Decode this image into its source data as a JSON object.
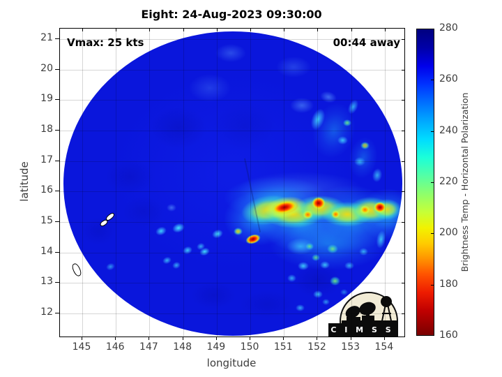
{
  "figure": {
    "title": "Eight: 24-Aug-2023 09:30:00",
    "overlays": {
      "vmax_label": "Vmax: 25 kts",
      "time_label": "00:44 away"
    }
  },
  "axes": {
    "xlabel": "longitude",
    "ylabel": "latitude",
    "x_ticks": [
      145,
      146,
      147,
      148,
      149,
      150,
      151,
      152,
      153,
      154
    ],
    "y_ticks": [
      21,
      20,
      19,
      18,
      17,
      16,
      15,
      14,
      13,
      12
    ],
    "xlim": [
      144.336,
      154.583
    ],
    "ylim": [
      11.247,
      21.344
    ]
  },
  "colorbar": {
    "label": "Brightness Temp - Horizontal Polarization",
    "vmin": 160,
    "vmax": 280,
    "ticks": [
      280,
      260,
      240,
      220,
      200,
      180,
      160
    ],
    "gradient": [
      [
        0,
        "#00007f"
      ],
      [
        0.06,
        "#0000a8"
      ],
      [
        0.12,
        "#0000ea"
      ],
      [
        0.18,
        "#0033ff"
      ],
      [
        0.24,
        "#0070ff"
      ],
      [
        0.3,
        "#00a8ff"
      ],
      [
        0.36,
        "#00dcff"
      ],
      [
        0.42,
        "#1cffd8"
      ],
      [
        0.48,
        "#55ffa4"
      ],
      [
        0.54,
        "#90ff6a"
      ],
      [
        0.6,
        "#c8ff35"
      ],
      [
        0.65,
        "#f2f200"
      ],
      [
        0.7,
        "#ffcc00"
      ],
      [
        0.75,
        "#ff9400"
      ],
      [
        0.8,
        "#ff5400"
      ],
      [
        0.86,
        "#ee1c00"
      ],
      [
        0.92,
        "#c00000"
      ],
      [
        1,
        "#7a0000"
      ]
    ]
  },
  "logo": {
    "name": "CIMSS",
    "banner_text": "C I M S S"
  },
  "chart_data": {
    "type": "heatmap",
    "title": "Eight: 24-Aug-2023 09:30:00",
    "xlabel": "longitude",
    "ylabel": "latitude",
    "value_label": "Brightness Temp - Horizontal Polarization",
    "value_range": [
      160,
      280
    ],
    "description": "Microwave brightness temperature swath (circular field of view) for tropical system Eight. Mostly warm blue background (~260-270) with a convective band of cold cloud tops (reds ~165-185) near 15-15.6N between 150E and 154.3E, scattered small cold cells southwest and southeast of the band, and lighter cyan streaks near the northeast swath edge.",
    "swath": {
      "center_lon": 149.48,
      "center_lat": 16.26,
      "radius_lon": 5.04,
      "radius_lat": 4.99,
      "background_temp": 265
    },
    "seam": {
      "lon1": 149.81,
      "lat1": 17.09,
      "lon2": 150.27,
      "lat2": 14.66
    },
    "islands": [
      {
        "name": "island-outline-north",
        "parts": [
          {
            "lon": 145.81,
            "lat": 15.19,
            "w": 12,
            "h": 5,
            "rot": -40
          },
          {
            "lon": 145.62,
            "lat": 15.0,
            "w": 10,
            "h": 5,
            "rot": -35
          }
        ]
      },
      {
        "name": "island-outline-south",
        "parts": [
          {
            "lon": 144.81,
            "lat": 13.45,
            "w": 8,
            "h": 17,
            "rot": -25
          }
        ]
      }
    ],
    "kind_legend": {
      "core": "deep convection ~165-180",
      "hot": "~185-195",
      "warm": "~200-215",
      "green": "~218-228",
      "cyan": "~230-242",
      "teal": "lightened patch ~245-252",
      "pale": "slightly warm blue ~252-258",
      "dark": "darker blue ~268-275"
    },
    "feature_fields": [
      "lon",
      "lat",
      "w_px",
      "h_px",
      "rot_deg",
      "kind",
      "opacity"
    ],
    "features": [
      [
        147.86,
        18.09,
        80,
        60,
        0,
        "dark",
        0.4
      ],
      [
        146.41,
        16.49,
        70,
        50,
        0,
        "dark",
        0.35
      ],
      [
        146.82,
        15.35,
        60,
        44,
        0,
        "dark",
        0.3
      ],
      [
        149.83,
        18.14,
        90,
        70,
        0,
        "dark",
        0.25
      ],
      [
        148.9,
        12.6,
        64,
        40,
        0,
        "dark",
        0.35
      ],
      [
        145.48,
        14.7,
        50,
        40,
        0,
        "dark",
        0.3
      ],
      [
        152.01,
        13.1,
        70,
        50,
        0,
        "dark",
        0.45
      ],
      [
        150.5,
        12.3,
        80,
        40,
        0,
        "dark",
        0.3
      ],
      [
        149.42,
        20.54,
        44,
        26,
        0,
        "pale",
        0.5
      ],
      [
        151.28,
        20.08,
        50,
        30,
        0,
        "pale",
        0.4
      ],
      [
        148.79,
        19.4,
        60,
        40,
        0,
        "pale",
        0.35
      ],
      [
        147.65,
        15.46,
        14,
        11,
        0,
        "pale",
        0.8
      ],
      [
        152.32,
        19.1,
        24,
        16,
        15,
        "pale",
        0.8
      ],
      [
        151.53,
        18.83,
        34,
        22,
        0,
        "pale",
        0.7
      ],
      [
        151.49,
        16.08,
        180,
        50,
        0,
        "pale",
        0.45
      ],
      [
        152.49,
        18.0,
        60,
        80,
        15,
        "teal",
        0.45
      ],
      [
        153.36,
        17.11,
        40,
        60,
        10,
        "teal",
        0.4
      ],
      [
        150.25,
        15.12,
        100,
        78,
        0,
        "teal",
        0.85
      ],
      [
        151.53,
        14.98,
        120,
        85,
        0,
        "teal",
        0.85
      ],
      [
        152.94,
        15.12,
        130,
        95,
        0,
        "teal",
        0.85
      ],
      [
        154.1,
        15.25,
        85,
        75,
        0,
        "teal",
        0.85
      ],
      [
        152.32,
        14.29,
        170,
        75,
        0,
        "teal",
        0.6
      ],
      [
        150.77,
        15.8,
        150,
        60,
        0,
        "teal",
        0.7
      ],
      [
        152.01,
        18.37,
        18,
        32,
        20,
        "cyan",
        0.85
      ],
      [
        152.74,
        17.68,
        15,
        12,
        0,
        "cyan",
        0.8
      ],
      [
        153.26,
        16.99,
        16,
        13,
        0,
        "cyan",
        0.7
      ],
      [
        153.78,
        16.54,
        14,
        20,
        10,
        "cyan",
        0.7
      ],
      [
        153.05,
        18.78,
        13,
        22,
        25,
        "cyan",
        0.7
      ],
      [
        147.34,
        14.7,
        16,
        12,
        -20,
        "cyan",
        0.9
      ],
      [
        147.86,
        14.81,
        18,
        13,
        -20,
        "cyan",
        1
      ],
      [
        149.02,
        14.61,
        16,
        12,
        -20,
        "cyan",
        0.95
      ],
      [
        148.13,
        14.08,
        14,
        11,
        -20,
        "cyan",
        0.85
      ],
      [
        147.51,
        13.74,
        13,
        10,
        -20,
        "cyan",
        0.75
      ],
      [
        148.65,
        14.04,
        15,
        11,
        -20,
        "cyan",
        0.95
      ],
      [
        147.8,
        13.58,
        12,
        10,
        -20,
        "cyan",
        0.7
      ],
      [
        145.85,
        13.53,
        13,
        10,
        -20,
        "cyan",
        0.6
      ],
      [
        148.53,
        14.2,
        12,
        10,
        -20,
        "cyan",
        0.7
      ],
      [
        151.49,
        14.2,
        40,
        24,
        0,
        "cyan",
        0.6
      ],
      [
        151.57,
        13.56,
        16,
        12,
        0,
        "cyan",
        0.85
      ],
      [
        152.22,
        13.6,
        14,
        11,
        0,
        "cyan",
        0.8
      ],
      [
        151.24,
        13.15,
        13,
        11,
        0,
        "cyan",
        0.7
      ],
      [
        152.01,
        12.64,
        14,
        11,
        0,
        "cyan",
        0.8
      ],
      [
        151.49,
        12.19,
        13,
        10,
        0,
        "cyan",
        0.7
      ],
      [
        152.94,
        13.56,
        14,
        11,
        0,
        "cyan",
        0.7
      ],
      [
        153.36,
        14.02,
        13,
        11,
        0,
        "cyan",
        0.7
      ],
      [
        153.88,
        14.43,
        13,
        26,
        10,
        "cyan",
        0.8
      ],
      [
        152.24,
        12.37,
        11,
        9,
        0,
        "cyan",
        0.6
      ],
      [
        152.78,
        12.69,
        11,
        9,
        0,
        "cyan",
        0.5
      ],
      [
        152.88,
        18.25,
        12,
        10,
        0,
        "green",
        0.9
      ],
      [
        152.45,
        14.11,
        16,
        13,
        0,
        "green",
        0.85
      ],
      [
        151.76,
        14.2,
        12,
        10,
        0,
        "green",
        0.8
      ],
      [
        152.51,
        13.06,
        15,
        13,
        0,
        "green",
        0.9
      ],
      [
        151.95,
        13.83,
        12,
        10,
        0,
        "green",
        0.8
      ],
      [
        153.42,
        17.5,
        13,
        11,
        0,
        "warm",
        0.8
      ],
      [
        150.54,
        15.39,
        78,
        42,
        -8,
        "warm",
        0.95
      ],
      [
        151.28,
        15.25,
        85,
        40,
        0,
        "warm",
        0.95
      ],
      [
        152.09,
        15.46,
        75,
        36,
        0,
        "warm",
        0.95
      ],
      [
        152.88,
        15.25,
        72,
        36,
        0,
        "warm",
        0.95
      ],
      [
        153.57,
        15.39,
        62,
        38,
        0,
        "warm",
        0.95
      ],
      [
        154.06,
        15.41,
        42,
        30,
        0,
        "warm",
        0.9
      ],
      [
        149.63,
        14.7,
        13,
        11,
        0,
        "warm",
        0.9
      ],
      [
        151.04,
        15.48,
        60,
        30,
        -10,
        "hot",
        0.9
      ],
      [
        151.72,
        15.25,
        15,
        13,
        0,
        "hot",
        0.95
      ],
      [
        152.55,
        15.25,
        13,
        12,
        0,
        "hot",
        0.95
      ],
      [
        153.42,
        15.41,
        15,
        13,
        0,
        "hot",
        0.95
      ],
      [
        151.02,
        15.48,
        38,
        18,
        -12,
        "core",
        1
      ],
      [
        152.03,
        15.62,
        20,
        18,
        0,
        "core",
        1
      ],
      [
        153.86,
        15.48,
        18,
        16,
        0,
        "core",
        1
      ],
      [
        150.08,
        14.45,
        22,
        13,
        -18,
        "core",
        1
      ]
    ]
  }
}
